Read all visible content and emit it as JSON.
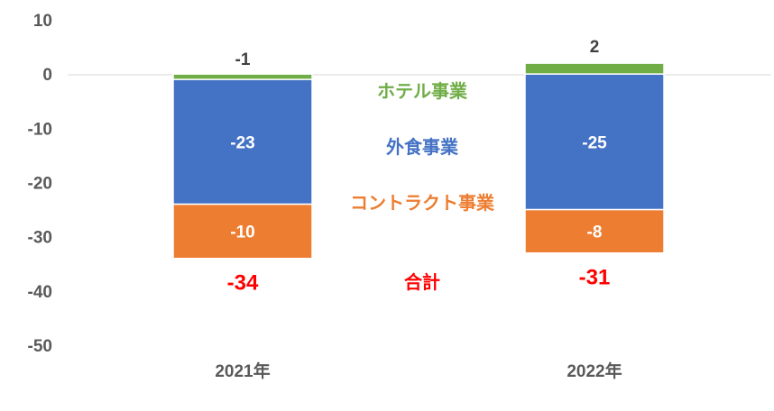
{
  "chart_data": {
    "type": "bar",
    "stacked": true,
    "categories": [
      "2021年",
      "2022年"
    ],
    "series": [
      {
        "name": "ホテル事業",
        "values": [
          -1,
          2
        ],
        "color": "#70AD47"
      },
      {
        "name": "外食事業",
        "values": [
          -23,
          -25
        ],
        "color": "#4472C4"
      },
      {
        "name": "コントラクト事業",
        "values": [
          -10,
          -8
        ],
        "color": "#ED7D31"
      }
    ],
    "totals": {
      "name": "合計",
      "values": [
        -34,
        -31
      ],
      "color": "#FF0000"
    },
    "yticks": [
      "10",
      "0",
      "-10",
      "-20",
      "-30",
      "-40",
      "-50"
    ],
    "ylim": [
      -50,
      10
    ],
    "grid": false,
    "legend": "inline-center"
  }
}
